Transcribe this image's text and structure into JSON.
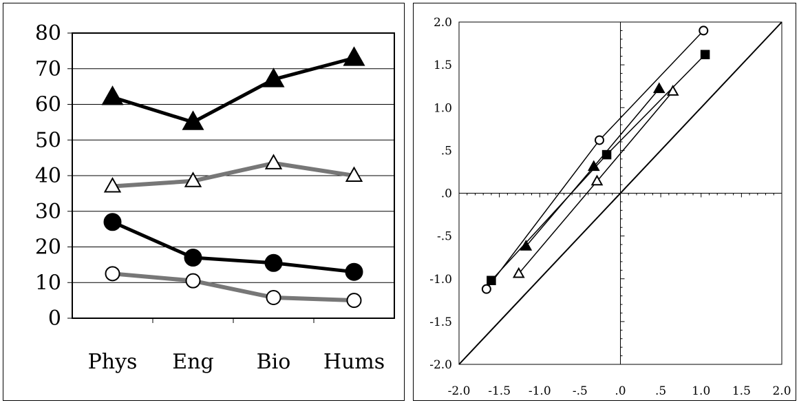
{
  "chart_data": [
    {
      "type": "line",
      "categories": [
        "Phys",
        "Eng",
        "Bio",
        "Hums"
      ],
      "ylim": [
        0,
        80
      ],
      "yticks": [
        "0",
        "10",
        "20",
        "30",
        "40",
        "50",
        "60",
        "70",
        "80"
      ],
      "grid": true,
      "series": [
        {
          "marker": "filled-triangle",
          "line": "#000000",
          "values": [
            62,
            55,
            67,
            73
          ]
        },
        {
          "marker": "open-triangle",
          "line": "#777777",
          "values": [
            37,
            38.5,
            43.5,
            40
          ]
        },
        {
          "marker": "filled-circle",
          "line": "#000000",
          "values": [
            27,
            17,
            15.5,
            13
          ]
        },
        {
          "marker": "open-circle",
          "line": "#777777",
          "values": [
            12.5,
            10.5,
            5.8,
            5
          ]
        }
      ]
    },
    {
      "type": "scatter",
      "xlim": [
        -2.0,
        2.0
      ],
      "ylim": [
        -2.0,
        2.0
      ],
      "xticks": [
        "-2.0",
        "-1.5",
        "-1.0",
        "-.5",
        ".0",
        ".5",
        "1.0",
        "1.5",
        "2.0"
      ],
      "yticks": [
        "2.0",
        "1.5",
        "1.0",
        ".5",
        ".0",
        "-.5",
        "-1.0",
        "-1.5",
        "-2.0"
      ],
      "diagonal": true,
      "series": [
        {
          "marker": "open-circle",
          "points": [
            [
              -1.66,
              -1.12
            ],
            [
              -0.26,
              0.62
            ],
            [
              1.03,
              1.9
            ]
          ]
        },
        {
          "marker": "filled-square",
          "points": [
            [
              -1.6,
              -1.02
            ],
            [
              -0.17,
              0.45
            ],
            [
              1.05,
              1.62
            ]
          ]
        },
        {
          "marker": "filled-triangle",
          "points": [
            [
              -1.17,
              -0.62
            ],
            [
              -0.33,
              0.31
            ],
            [
              0.48,
              1.22
            ]
          ]
        },
        {
          "marker": "open-triangle",
          "points": [
            [
              -1.26,
              -0.94
            ],
            [
              -0.29,
              0.14
            ],
            [
              0.65,
              1.19
            ]
          ]
        }
      ]
    }
  ]
}
